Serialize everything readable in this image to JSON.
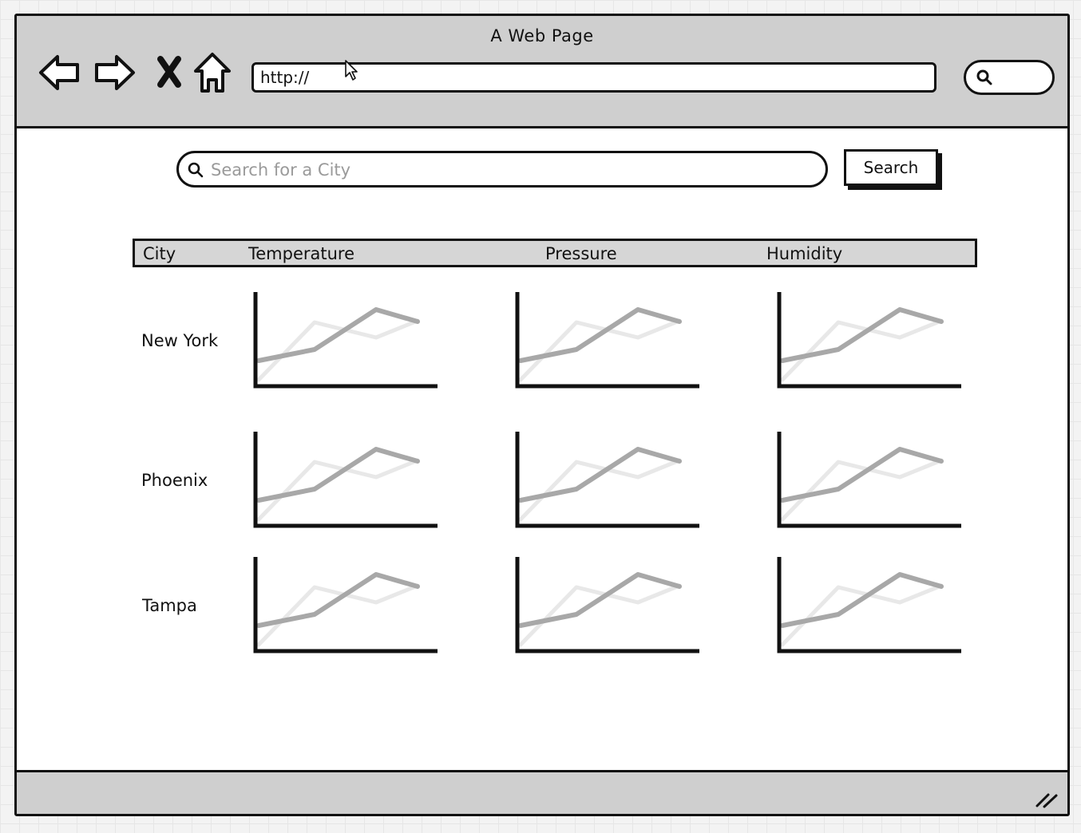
{
  "window": {
    "title": "A Web Page",
    "url": "http://"
  },
  "icons": {
    "back": "back-arrow-icon",
    "forward": "forward-arrow-icon",
    "stop": "stop-icon",
    "home": "home-icon",
    "search": "search-icon",
    "resize": "resize-grip-icon"
  },
  "search": {
    "placeholder": "Search for a City",
    "value": "",
    "button_label": "Search"
  },
  "table": {
    "headers": {
      "city": "City",
      "temperature": "Temperature",
      "pressure": "Pressure",
      "humidity": "Humidity"
    },
    "rows": [
      {
        "city": "New York"
      },
      {
        "city": "Phoenix"
      },
      {
        "city": "Tampa"
      }
    ]
  },
  "colors": {
    "chrome": "#cfcfcf",
    "header": "#d6d6d6",
    "line_dark": "#a8a8a8",
    "line_light": "#e8e8e8",
    "ink": "#111111"
  }
}
